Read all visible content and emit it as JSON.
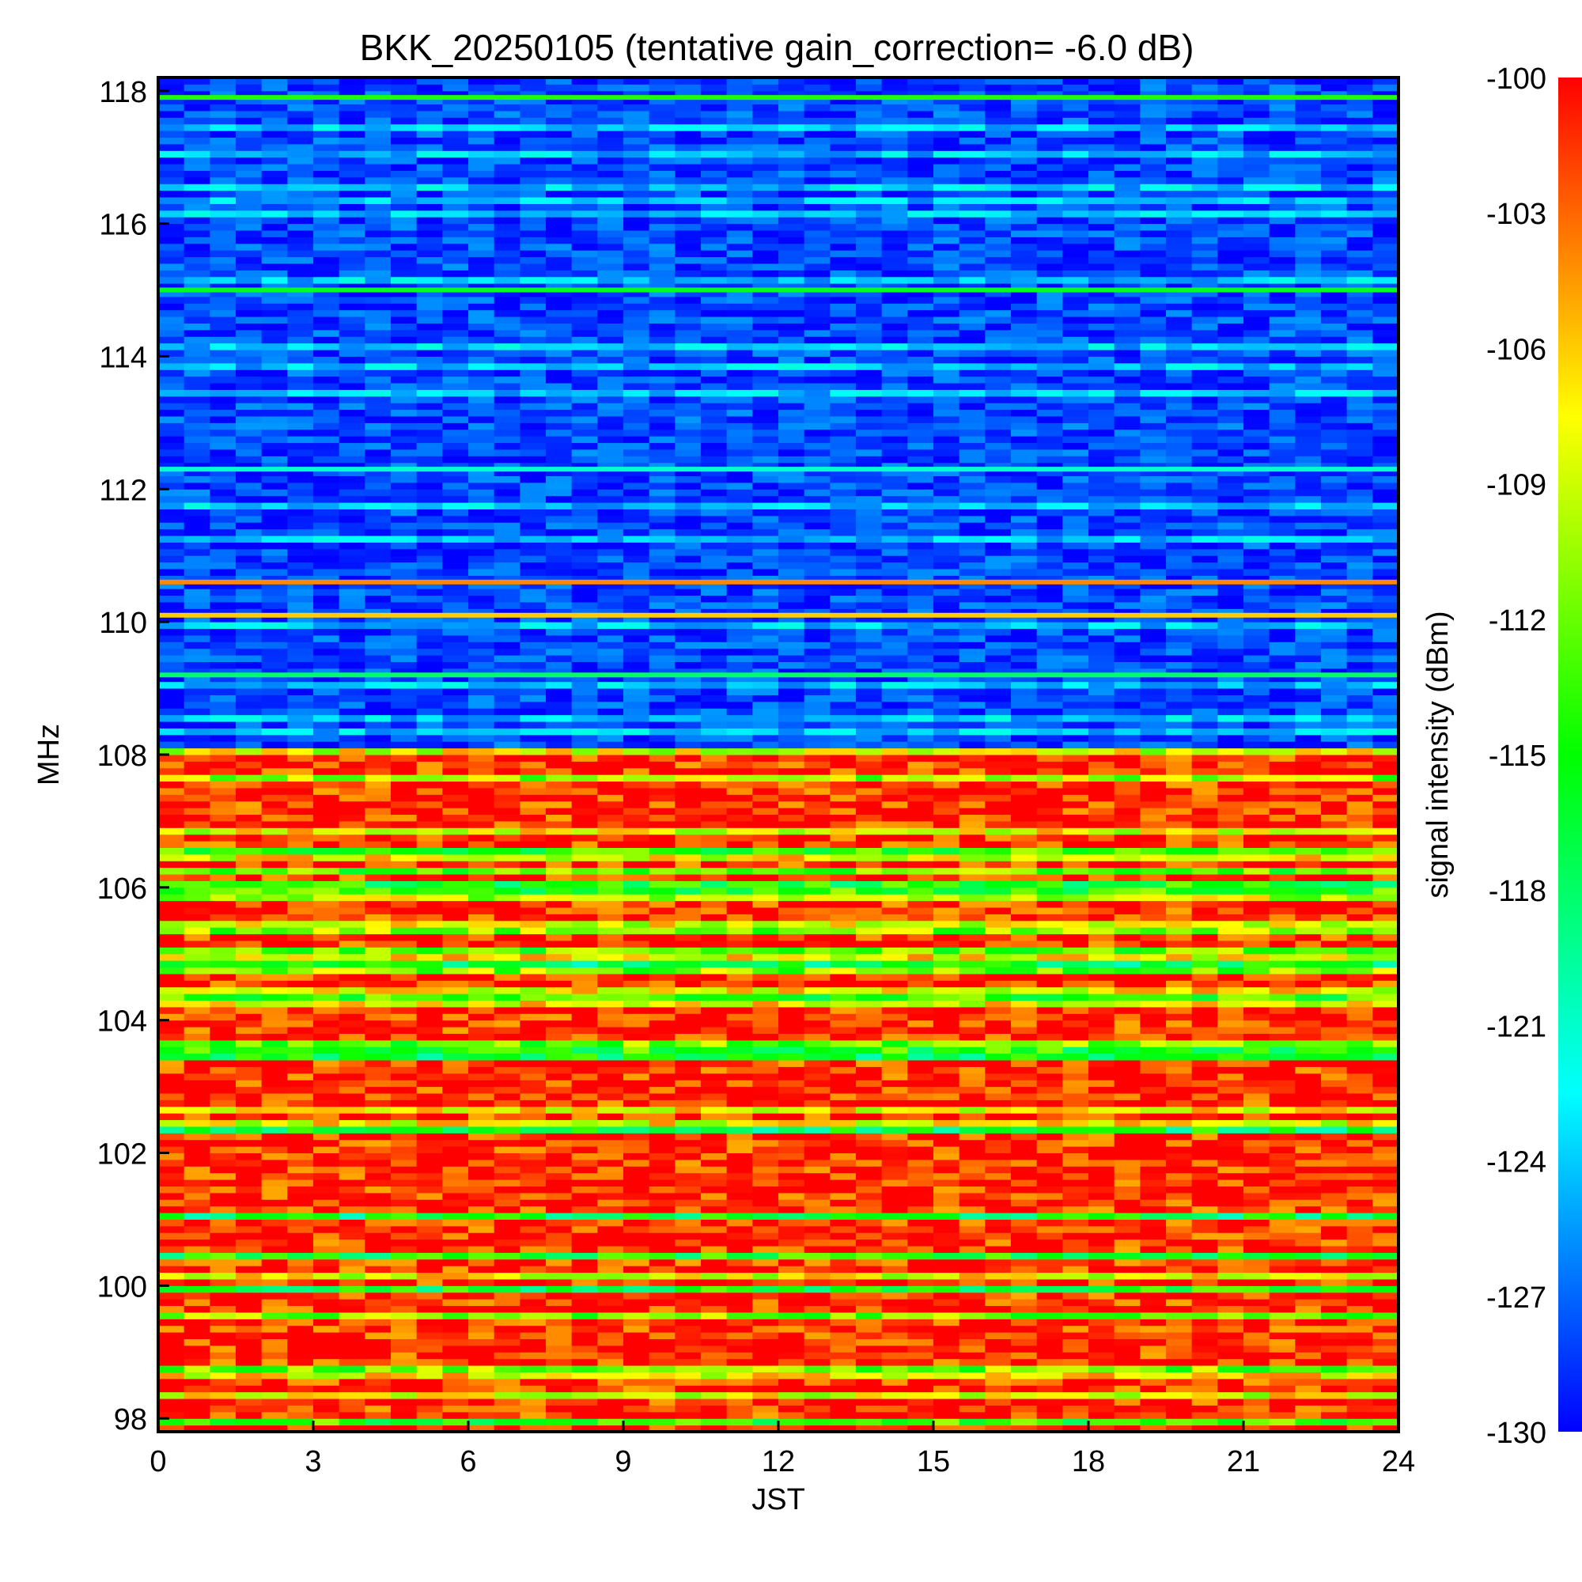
{
  "chart_data": {
    "type": "heatmap",
    "title": "BKK_20250105 (tentative gain_correction= -6.0 dB)",
    "xlabel": "JST",
    "ylabel": "MHz",
    "colorbar_label": "signal intensity (dBm)",
    "xlim": [
      0,
      24
    ],
    "ylim": [
      97.8,
      118.2
    ],
    "clim": [
      -130,
      -100
    ],
    "x_ticks": [
      "0",
      "3",
      "6",
      "9",
      "12",
      "15",
      "18",
      "21",
      "24"
    ],
    "y_ticks": [
      "98",
      "100",
      "102",
      "104",
      "106",
      "108",
      "110",
      "112",
      "114",
      "116",
      "118"
    ],
    "colorbar_ticks": [
      "-100",
      "-103",
      "-106",
      "-109",
      "-112",
      "-115",
      "-118",
      "-121",
      "-124",
      "-127",
      "-130"
    ],
    "colormap": [
      "#0000ff",
      "#0080ff",
      "#00ffff",
      "#00ff80",
      "#00ff00",
      "#80ff00",
      "#ffff00",
      "#ff8000",
      "#ff0000"
    ],
    "bands": [
      {
        "range_mhz": [
          108.0,
          118.2
        ],
        "typical_dbm": -128,
        "description_colour": "blue noise floor"
      },
      {
        "range_mhz": [
          97.8,
          108.0
        ],
        "typical_dbm": -101,
        "description_colour": "red FM broadcast band"
      }
    ],
    "highlight_lines_mhz": [
      {
        "freq": 117.9,
        "dbm": -114
      },
      {
        "freq": 115.0,
        "dbm": -116
      },
      {
        "freq": 112.3,
        "dbm": -121
      },
      {
        "freq": 110.6,
        "dbm": -104
      },
      {
        "freq": 110.1,
        "dbm": -106
      },
      {
        "freq": 109.2,
        "dbm": -118
      }
    ]
  }
}
